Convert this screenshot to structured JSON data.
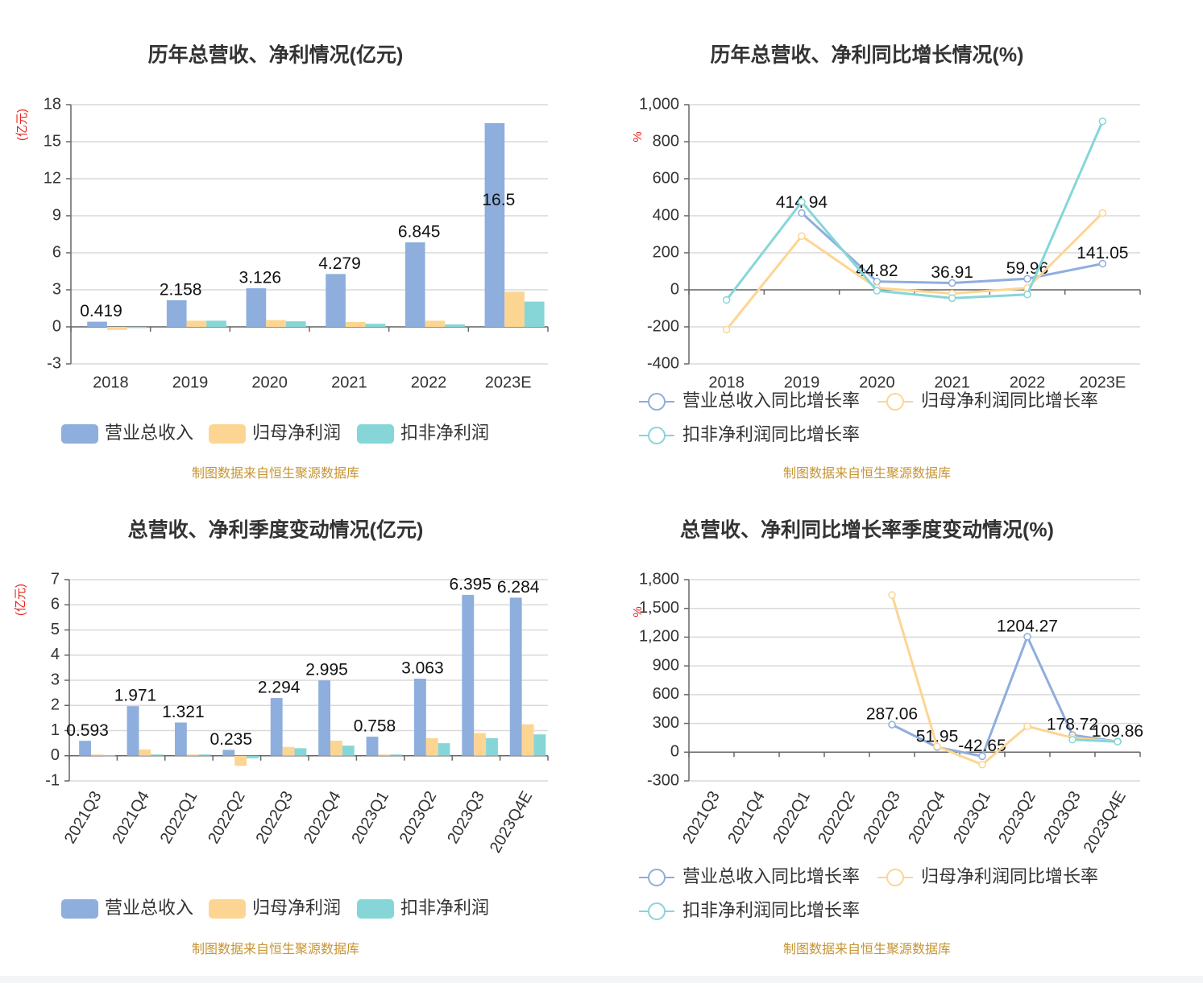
{
  "source_note": "制图数据来自恒生聚源数据库",
  "colors": {
    "revenue": "#8eaedd",
    "net_profit": "#fdd592",
    "deducted_profit": "#86d6d8",
    "axis": "#666666",
    "grid": "#d9d9d9",
    "unit": "#e8211b",
    "source": "#c79433",
    "title": "#333333"
  },
  "chart_data": [
    {
      "id": "annual-amount",
      "type": "bar",
      "title": "历年总营收、净利情况(亿元)",
      "ylabel": "(亿元)",
      "ylim": [
        -3,
        18
      ],
      "yticks": [
        -3,
        0,
        3,
        6,
        9,
        12,
        15,
        18
      ],
      "categories": [
        "2018",
        "2019",
        "2020",
        "2021",
        "2022",
        "2023E"
      ],
      "series": [
        {
          "name": "营业总收入",
          "values": [
            0.419,
            2.158,
            3.126,
            4.279,
            6.845,
            16.5
          ],
          "labels": [
            "0.419",
            "2.158",
            "3.126",
            "4.279",
            "6.845",
            "16.5"
          ]
        },
        {
          "name": "归母净利润",
          "values": [
            -0.25,
            0.5,
            0.55,
            0.4,
            0.5,
            2.85
          ]
        },
        {
          "name": "扣非净利润",
          "values": [
            -0.1,
            0.5,
            0.45,
            0.25,
            0.2,
            2.05
          ]
        }
      ],
      "legend_position": "bottom",
      "grid": true
    },
    {
      "id": "annual-growth",
      "type": "line",
      "title": "历年总营收、净利同比增长情况(%)",
      "ylabel": "%",
      "ylim": [
        -400,
        1000
      ],
      "yticks": [
        -400,
        -200,
        0,
        200,
        400,
        600,
        800,
        1000
      ],
      "ytick_labels": [
        "-400",
        "-200",
        "0",
        "200",
        "400",
        "600",
        "800",
        "1,000"
      ],
      "categories": [
        "2018",
        "2019",
        "2020",
        "2021",
        "2022",
        "2023E"
      ],
      "series": [
        {
          "name": "营业总收入同比增长率",
          "values": [
            null,
            414.94,
            44.82,
            36.91,
            59.96,
            141.05
          ],
          "labels": [
            null,
            "414.94",
            "44.82",
            "36.91",
            "59.96",
            "141.05"
          ]
        },
        {
          "name": "归母净利润同比增长率",
          "values": [
            -215,
            290,
            10,
            -20,
            10,
            415
          ]
        },
        {
          "name": "扣非净利润同比增长率",
          "values": [
            -55,
            475,
            -5,
            -45,
            -25,
            910
          ]
        }
      ],
      "legend_position": "bottom",
      "grid": true
    },
    {
      "id": "quarterly-amount",
      "type": "bar",
      "title": "总营收、净利季度变动情况(亿元)",
      "ylabel": "(亿元)",
      "ylim": [
        -1,
        7
      ],
      "yticks": [
        -1,
        0,
        1,
        2,
        3,
        4,
        5,
        6,
        7
      ],
      "categories": [
        "2021Q3",
        "2021Q4",
        "2022Q1",
        "2022Q2",
        "2022Q3",
        "2022Q4",
        "2023Q1",
        "2023Q2",
        "2023Q3",
        "2023Q4E"
      ],
      "series": [
        {
          "name": "营业总收入",
          "values": [
            0.593,
            1.971,
            1.321,
            0.235,
            2.294,
            2.995,
            0.758,
            3.063,
            6.395,
            6.284
          ],
          "labels": [
            "0.593",
            "1.971",
            "1.321",
            "0.235",
            "2.294",
            "2.995",
            "0.758",
            "3.063",
            "6.395",
            "6.284"
          ]
        },
        {
          "name": "归母净利润",
          "values": [
            0.05,
            0.25,
            0.05,
            -0.4,
            0.35,
            0.6,
            0.05,
            0.7,
            0.9,
            1.25
          ]
        },
        {
          "name": "扣非净利润",
          "values": [
            0.02,
            0.05,
            0.05,
            -0.1,
            0.3,
            0.4,
            0.05,
            0.5,
            0.7,
            0.85
          ]
        }
      ],
      "legend_position": "bottom",
      "grid": true
    },
    {
      "id": "quarterly-growth",
      "type": "line",
      "title": "总营收、净利同比增长率季度变动情况(%)",
      "ylabel": "%",
      "ylim": [
        -300,
        1800
      ],
      "yticks": [
        -300,
        0,
        300,
        600,
        900,
        1200,
        1500,
        1800
      ],
      "ytick_labels": [
        "-300",
        "0",
        "300",
        "600",
        "900",
        "1,200",
        "1,500",
        "1,800"
      ],
      "categories": [
        "2021Q3",
        "2021Q4",
        "2022Q1",
        "2022Q2",
        "2022Q3",
        "2022Q4",
        "2023Q1",
        "2023Q2",
        "2023Q3",
        "2023Q4E"
      ],
      "series": [
        {
          "name": "营业总收入同比增长率",
          "values": [
            null,
            null,
            null,
            null,
            287.06,
            51.95,
            -42.65,
            1204.27,
            178.72,
            109.86
          ],
          "labels": [
            null,
            null,
            null,
            null,
            "287.06",
            "51.95",
            "-42.65",
            "1204.27",
            "178.72",
            "109.86"
          ]
        },
        {
          "name": "归母净利润同比增长率",
          "values": [
            null,
            null,
            null,
            null,
            1640,
            60,
            -130,
            270,
            150,
            110
          ]
        },
        {
          "name": "扣非净利润同比增长率",
          "values": [
            null,
            null,
            null,
            null,
            null,
            null,
            null,
            null,
            130,
            110
          ]
        }
      ],
      "legend_position": "bottom",
      "grid": true
    }
  ]
}
